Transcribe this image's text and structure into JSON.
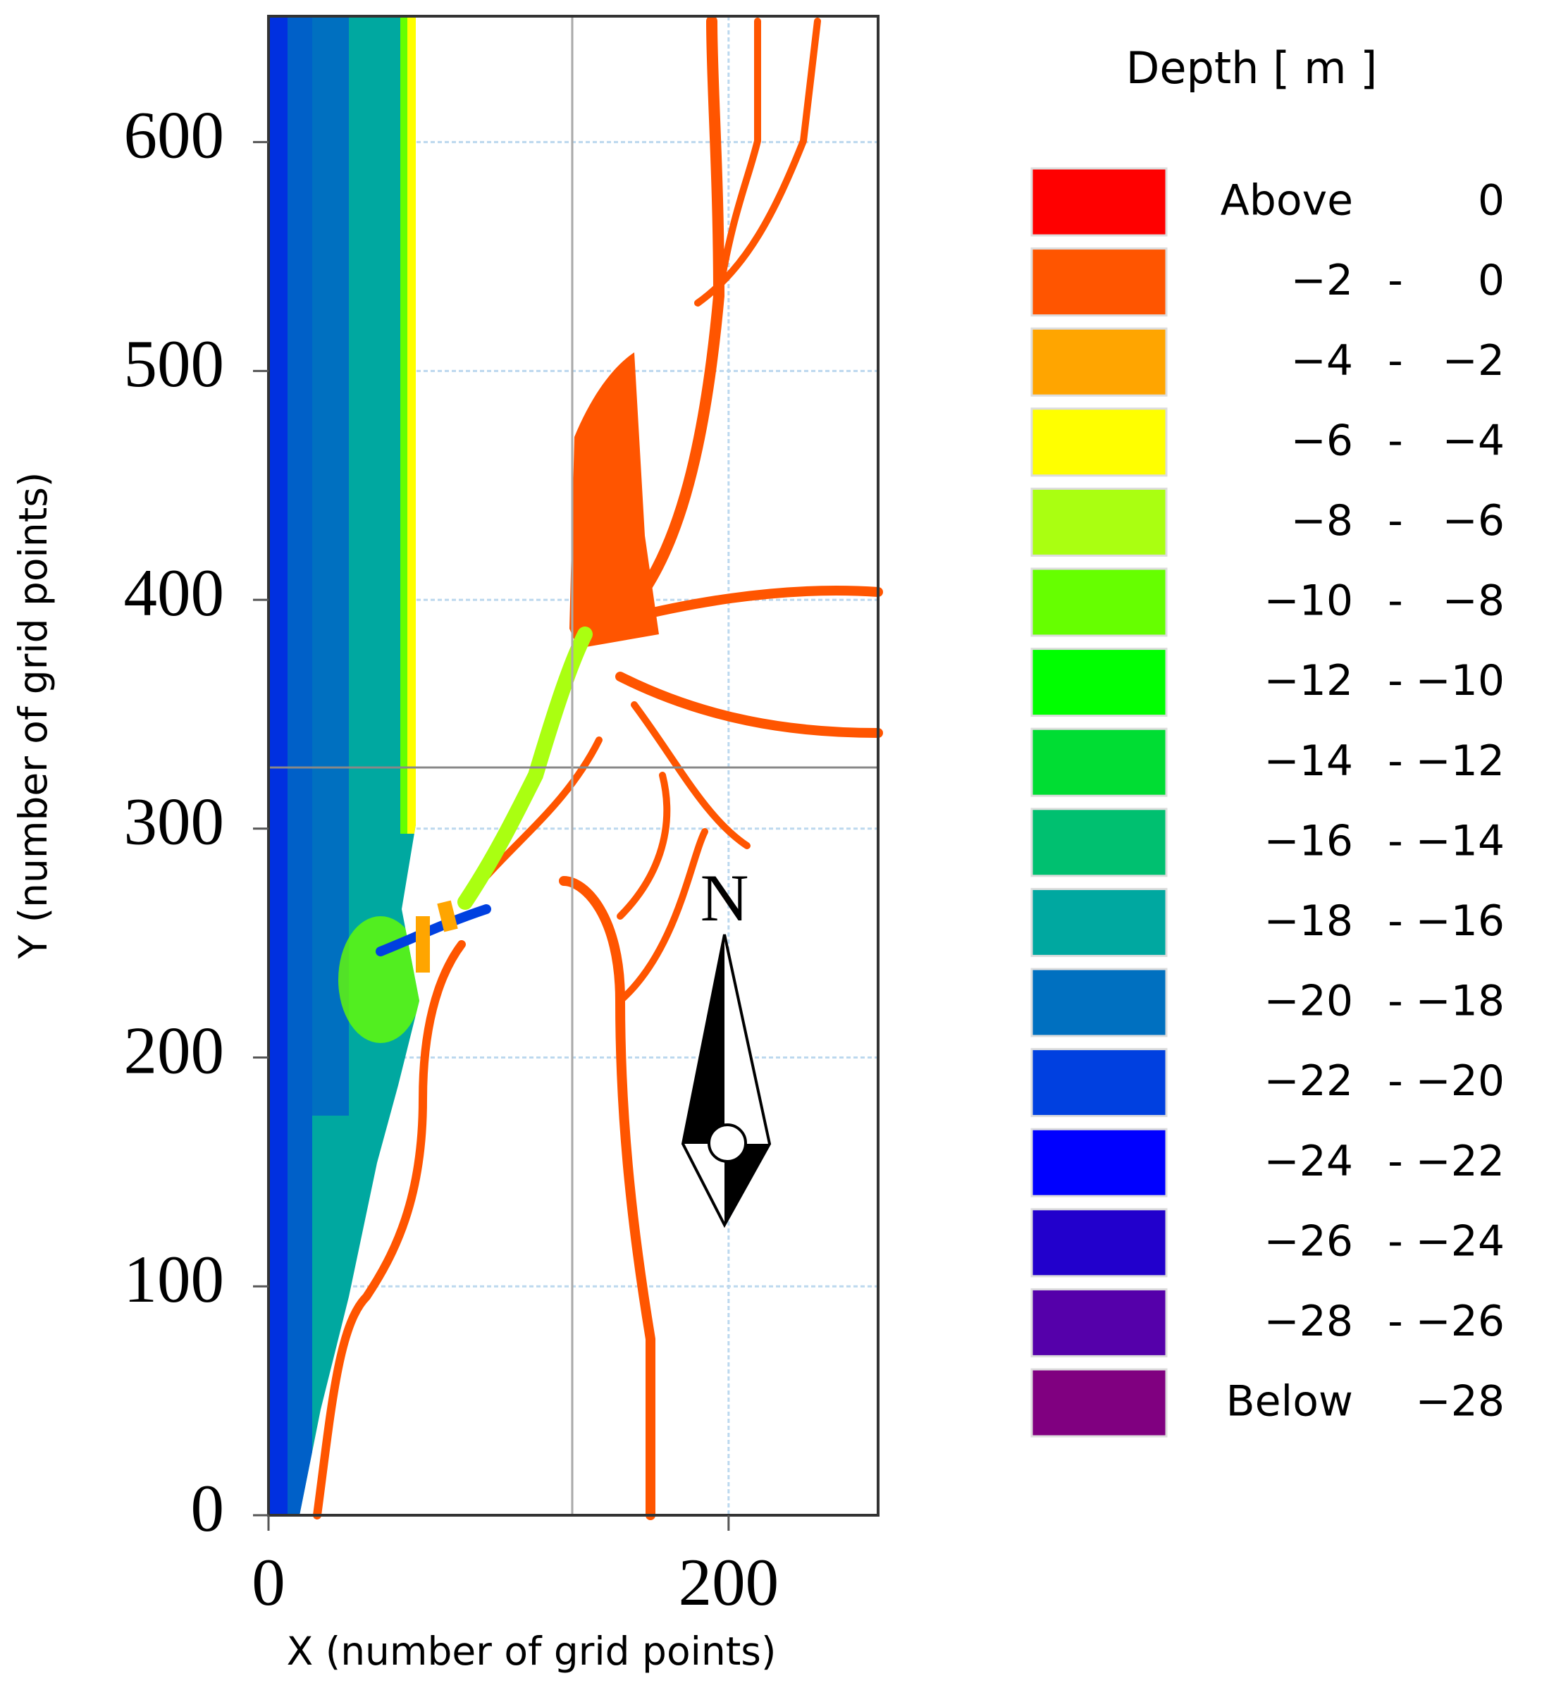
{
  "chart_data": {
    "type": "map",
    "x_label": "X (number of grid points)",
    "y_label": "Y (number of grid points)",
    "xlim": [
      0,
      265
    ],
    "ylim": [
      0,
      655
    ],
    "xticks": [
      0,
      200
    ],
    "yticks": [
      0,
      100,
      200,
      300,
      400,
      500,
      600
    ],
    "grid": true,
    "legend": {
      "title": "Depth [ m ]",
      "position": "right",
      "items": [
        {
          "text": [
            "Above",
            "0"
          ],
          "color": "#ff0000"
        },
        {
          "text": [
            "−2",
            "-",
            "0"
          ],
          "color": "#ff5500"
        },
        {
          "text": [
            "−4",
            "-",
            "−2"
          ],
          "color": "#ffa500"
        },
        {
          "text": [
            "−6",
            "-",
            "−4"
          ],
          "color": "#ffff00"
        },
        {
          "text": [
            "−8",
            "-",
            "−6"
          ],
          "color": "#aaff11"
        },
        {
          "text": [
            "−10",
            "-",
            "−8"
          ],
          "color": "#66ff00"
        },
        {
          "text": [
            "−12",
            "-",
            "−10"
          ],
          "color": "#00ff00"
        },
        {
          "text": [
            "−14",
            "-",
            "−12"
          ],
          "color": "#00dd33"
        },
        {
          "text": [
            "−16",
            "-",
            "−14"
          ],
          "color": "#00c070"
        },
        {
          "text": [
            "−18",
            "-",
            "−16"
          ],
          "color": "#00a8a0"
        },
        {
          "text": [
            "−20",
            "-",
            "−18"
          ],
          "color": "#0070c0"
        },
        {
          "text": [
            "−22",
            "-",
            "−20"
          ],
          "color": "#0040e0"
        },
        {
          "text": [
            "−24",
            "-",
            "−22"
          ],
          "color": "#0000ff"
        },
        {
          "text": [
            "−26",
            "-",
            "−24"
          ],
          "color": "#2200cc"
        },
        {
          "text": [
            "−28",
            "-",
            "−26"
          ],
          "color": "#5500aa"
        },
        {
          "text": [
            "Below",
            "−28"
          ],
          "color": "#800080"
        }
      ]
    }
  }
}
